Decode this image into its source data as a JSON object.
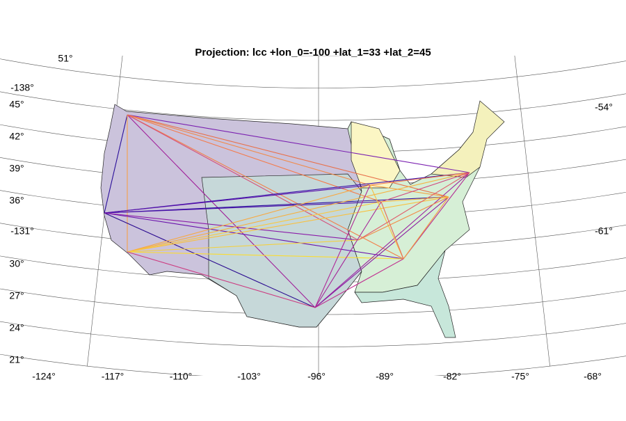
{
  "title": "Projection: lcc +lon_0=-100 +lat_1=33 +lat_2=45",
  "left_labels": [
    "51°",
    "-138°",
    "45°",
    "42°",
    "39°",
    "36°",
    "-131°",
    "30°",
    "27°",
    "24°",
    "21°"
  ],
  "bottom_labels": [
    "-124°",
    "-117°",
    "-110°",
    "-103°",
    "-96°",
    "-89°",
    "-82°",
    "-75°",
    "-68°"
  ],
  "right_labels": [
    "-54°",
    "-61°"
  ]
}
